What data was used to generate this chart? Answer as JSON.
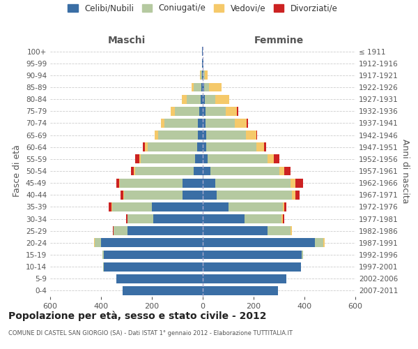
{
  "age_groups": [
    "100+",
    "95-99",
    "90-94",
    "85-89",
    "80-84",
    "75-79",
    "70-74",
    "65-69",
    "60-64",
    "55-59",
    "50-54",
    "45-49",
    "40-44",
    "35-39",
    "30-34",
    "25-29",
    "20-24",
    "15-19",
    "10-14",
    "5-9",
    "0-4"
  ],
  "birth_years": [
    "≤ 1911",
    "1912-1916",
    "1917-1921",
    "1922-1926",
    "1927-1931",
    "1932-1936",
    "1937-1941",
    "1942-1946",
    "1947-1951",
    "1952-1956",
    "1957-1961",
    "1962-1966",
    "1967-1971",
    "1972-1976",
    "1977-1981",
    "1982-1986",
    "1987-1991",
    "1992-1996",
    "1997-2001",
    "2002-2006",
    "2007-2011"
  ],
  "maschi": {
    "celibi": [
      2,
      2,
      4,
      5,
      8,
      15,
      20,
      20,
      22,
      30,
      35,
      80,
      80,
      200,
      195,
      295,
      400,
      390,
      390,
      340,
      315
    ],
    "coniugati": [
      0,
      0,
      5,
      30,
      55,
      95,
      130,
      155,
      195,
      215,
      230,
      245,
      230,
      155,
      100,
      55,
      25,
      5,
      2,
      0,
      0
    ],
    "vedovi": [
      0,
      0,
      2,
      10,
      20,
      15,
      15,
      15,
      10,
      5,
      5,
      5,
      2,
      5,
      2,
      2,
      3,
      0,
      0,
      0,
      0
    ],
    "divorziati": [
      0,
      0,
      0,
      0,
      0,
      0,
      0,
      0,
      8,
      15,
      12,
      10,
      10,
      10,
      5,
      2,
      0,
      0,
      0,
      0,
      0
    ]
  },
  "femmine": {
    "nubili": [
      1,
      2,
      3,
      5,
      8,
      10,
      12,
      15,
      15,
      20,
      30,
      50,
      55,
      100,
      165,
      255,
      440,
      390,
      385,
      330,
      295
    ],
    "coniugate": [
      0,
      0,
      5,
      20,
      40,
      80,
      115,
      155,
      195,
      235,
      270,
      295,
      295,
      215,
      145,
      90,
      35,
      5,
      2,
      0,
      0
    ],
    "vedove": [
      0,
      2,
      10,
      50,
      55,
      45,
      45,
      40,
      30,
      25,
      20,
      20,
      15,
      5,
      5,
      5,
      5,
      0,
      0,
      0,
      0
    ],
    "divorziate": [
      0,
      0,
      0,
      0,
      0,
      5,
      5,
      5,
      10,
      20,
      25,
      30,
      15,
      8,
      5,
      2,
      0,
      0,
      0,
      0,
      0
    ]
  },
  "colors": {
    "celibi": "#3a6ea5",
    "coniugati": "#b5c9a0",
    "vedovi": "#f5c96a",
    "divorziati": "#cc2222"
  },
  "title": "Popolazione per età, sesso e stato civile - 2012",
  "subtitle": "COMUNE DI CASTEL SAN GIORGIO (SA) - Dati ISTAT 1° gennaio 2012 - Elaborazione TUTTITALIA.IT",
  "ylabel_left": "Fasce di età",
  "ylabel_right": "Anni di nascita",
  "xlabel_left": "Maschi",
  "xlabel_right": "Femmine",
  "xlim": 600,
  "background_color": "#ffffff",
  "legend_labels": [
    "Celibi/Nubili",
    "Coniugati/e",
    "Vedovi/e",
    "Divorziati/e"
  ]
}
